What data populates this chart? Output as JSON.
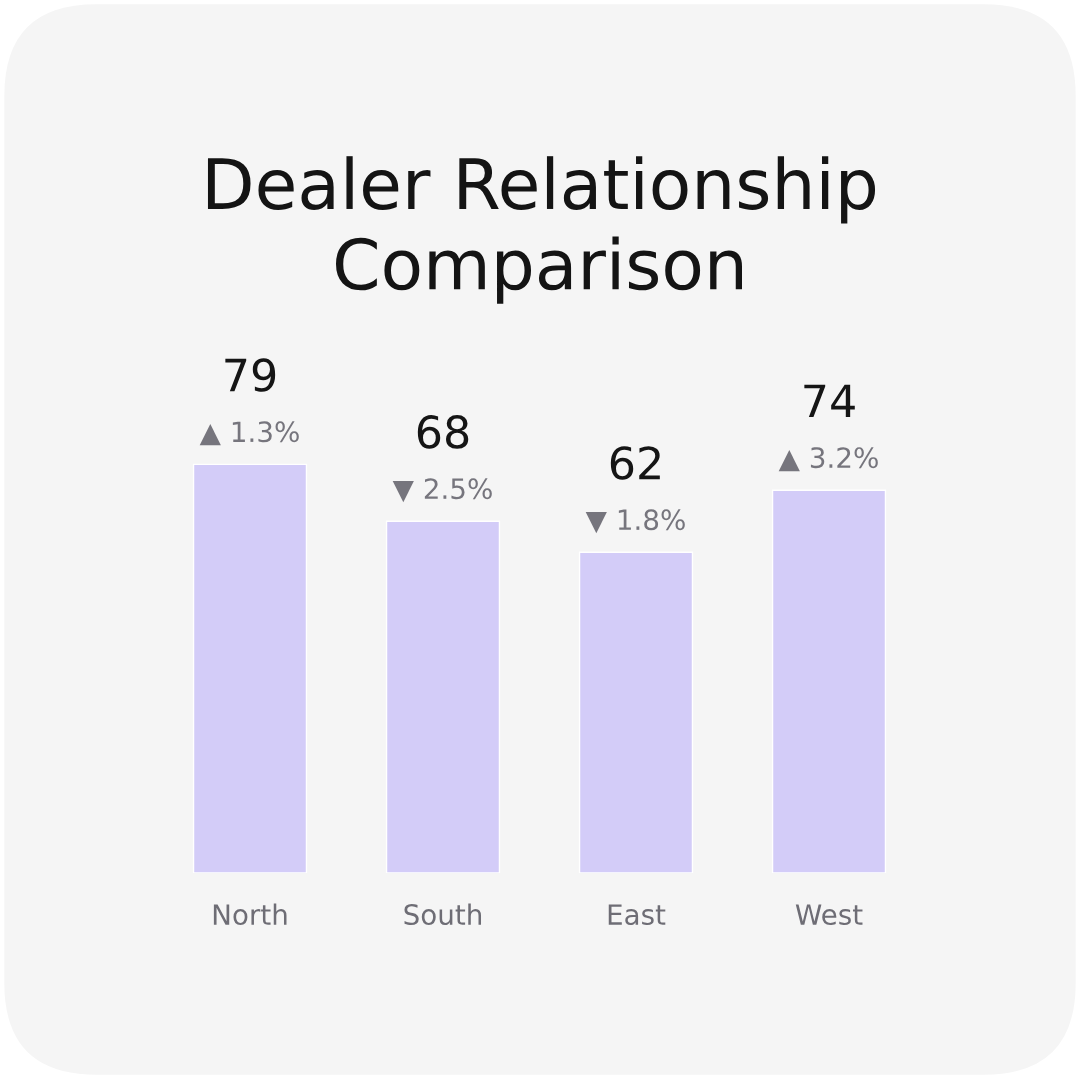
{
  "chart_data": {
    "type": "bar",
    "title": "Dealer Relationship Comparison",
    "categories": [
      "North",
      "South",
      "East",
      "West"
    ],
    "values": [
      79,
      68,
      62,
      74
    ],
    "color": "#d3ccf8",
    "data_labels": true,
    "tick_labels": "x",
    "annotations": [
      {
        "text": "▲ 1.3%",
        "x": "North",
        "y": 79
      },
      {
        "text": "▼ 2.5%",
        "x": "South",
        "y": 68
      },
      {
        "text": "▼ 1.8%",
        "x": "East",
        "y": 62
      },
      {
        "text": "▲ 3.2%",
        "x": "West",
        "y": 74
      }
    ]
  }
}
